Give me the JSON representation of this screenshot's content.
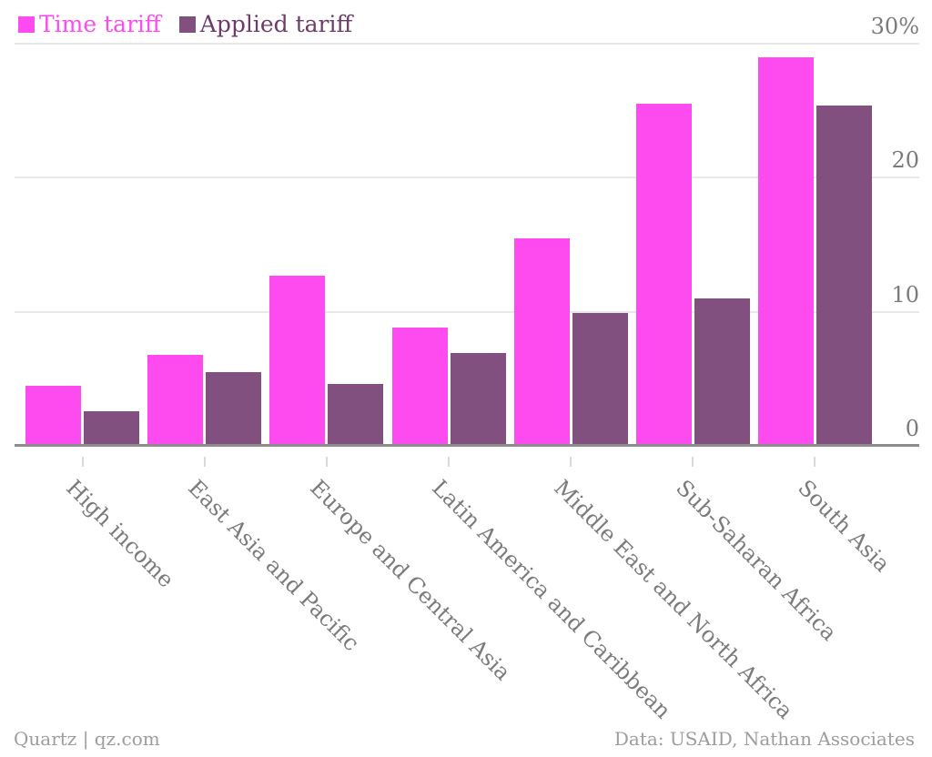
{
  "legend": {
    "items": [
      {
        "label": "Time tariff",
        "swatch_color": "#fe4bef",
        "text_color": "#fe4bef"
      },
      {
        "label": "Applied tariff",
        "swatch_color": "#82507e",
        "text_color": "#6d3c68"
      }
    ]
  },
  "chart_data": {
    "type": "bar",
    "title": "",
    "categories": [
      "High income",
      "East Asia and Pacific",
      "Europe and Central Asia",
      "Latin America and Caribbean",
      "Middle East and North Africa",
      "Sub-Saharan Africa",
      "South Asia"
    ],
    "series": [
      {
        "name": "Time tariff",
        "color": "#fe4bef",
        "values": [
          4.5,
          6.8,
          12.7,
          8.8,
          15.5,
          25.5,
          29.0
        ]
      },
      {
        "name": "Applied tariff",
        "color": "#82507e",
        "values": [
          2.6,
          5.5,
          4.6,
          6.9,
          9.9,
          11.0,
          25.4
        ]
      }
    ],
    "xlabel": "",
    "ylabel": "",
    "ylim": [
      0,
      30
    ],
    "yticks": [
      {
        "value": 0,
        "label": "0"
      },
      {
        "value": 10,
        "label": "10"
      },
      {
        "value": 20,
        "label": "20"
      },
      {
        "value": 30,
        "label": "30%"
      }
    ],
    "unit_suffix": "%",
    "grid": true,
    "legend_position": "top-left",
    "axis_label_color": "#7b7b7b"
  },
  "footer": {
    "left": "Quartz | qz.com",
    "right": "Data: USAID, Nathan Associates"
  }
}
